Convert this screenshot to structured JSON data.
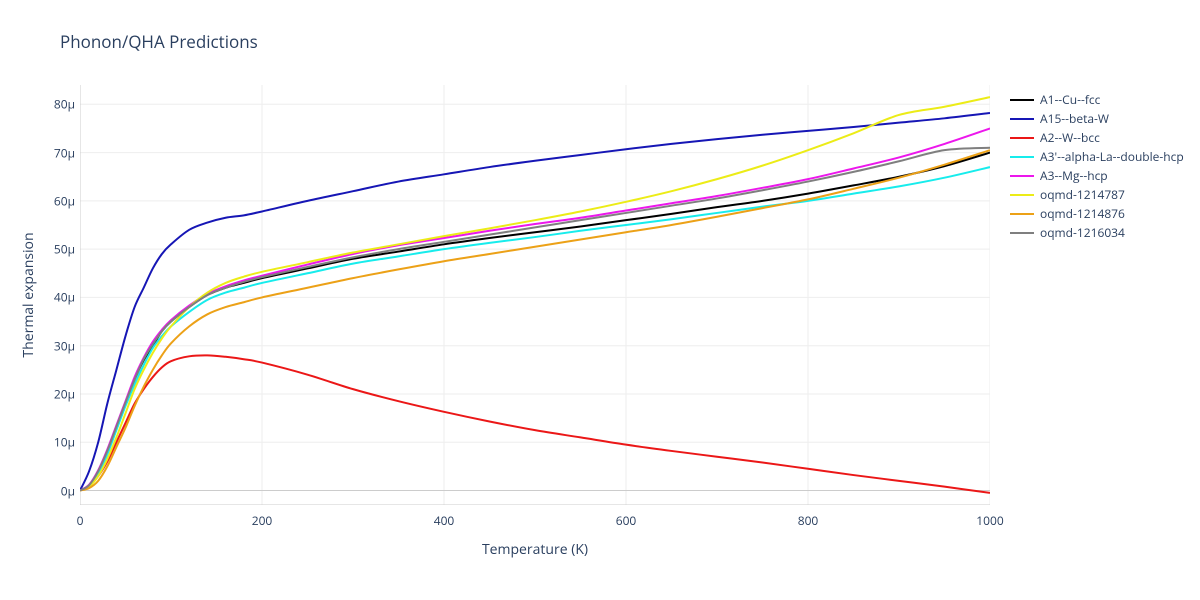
{
  "chart": {
    "type": "line",
    "title": "Phonon/QHA Predictions",
    "xlabel": "Temperature (K)",
    "ylabel": "Thermal expansion",
    "title_fontsize": 17,
    "label_fontsize": 14,
    "tick_fontsize": 12,
    "legend_fontsize": 12,
    "background_color": "#ffffff",
    "plot_bg": "#ffffff",
    "grid_color": "#eeeeee",
    "axis_line_color": "#444444",
    "xlim": [
      0,
      1000
    ],
    "ylim": [
      -3,
      84
    ],
    "xticks": [
      0,
      200,
      400,
      600,
      800,
      1000
    ],
    "yticks": [
      0,
      10,
      20,
      30,
      40,
      50,
      60,
      70,
      80
    ],
    "ytick_suffix": "μ",
    "line_width": 2,
    "x_samples": [
      0,
      10,
      20,
      30,
      40,
      50,
      60,
      70,
      80,
      90,
      100,
      120,
      140,
      160,
      180,
      200,
      250,
      300,
      350,
      400,
      450,
      500,
      550,
      600,
      650,
      700,
      750,
      800,
      850,
      900,
      950,
      1000
    ],
    "series": [
      {
        "name": "A1--Cu--fcc",
        "color": "#000000",
        "y": [
          0,
          1,
          4,
          8,
          13,
          18,
          23,
          27,
          30,
          33,
          35,
          38,
          40.5,
          42,
          43,
          44,
          46,
          48,
          49.5,
          51,
          52.3,
          53.5,
          54.7,
          56,
          57.3,
          58.7,
          60,
          61.5,
          63.2,
          65,
          67.2,
          70
        ]
      },
      {
        "name": "A15--beta-W",
        "color": "#1616b5",
        "y": [
          0,
          4,
          10,
          18,
          25,
          32,
          38,
          42,
          46,
          49,
          51,
          54,
          55.5,
          56.5,
          57,
          57.8,
          60,
          62,
          64,
          65.5,
          67,
          68.3,
          69.5,
          70.7,
          71.8,
          72.8,
          73.7,
          74.5,
          75.3,
          76.2,
          77.1,
          78.2
        ]
      },
      {
        "name": "A2--W--bcc",
        "color": "#eb1717",
        "y": [
          0,
          1,
          3,
          6,
          10,
          14,
          18,
          21,
          23.5,
          25.5,
          26.8,
          27.8,
          28,
          27.7,
          27.2,
          26.5,
          24,
          21,
          18.5,
          16.3,
          14.3,
          12.5,
          11,
          9.5,
          8.2,
          7,
          5.8,
          4.5,
          3.2,
          2,
          0.8,
          -0.5
        ]
      },
      {
        "name": "A3'--alpha-La--double-hcp",
        "color": "#17ecec",
        "y": [
          0,
          1,
          3.5,
          7.5,
          12.5,
          17.5,
          22,
          26,
          29.5,
          32,
          34,
          37,
          39.5,
          41,
          42,
          43,
          45,
          47,
          48.5,
          50,
          51.3,
          52.5,
          53.8,
          55,
          56.2,
          57.5,
          58.8,
          60,
          61.5,
          63,
          64.8,
          67
        ]
      },
      {
        "name": "A3--Mg--hcp",
        "color": "#ec17ec",
        "y": [
          0,
          1.2,
          4.2,
          8.5,
          13.5,
          18.5,
          23.5,
          27.5,
          30.8,
          33.3,
          35.3,
          38.3,
          40.7,
          42.3,
          43.5,
          44.5,
          46.8,
          49,
          50.8,
          52.3,
          53.8,
          55.2,
          56.5,
          58,
          59.5,
          61,
          62.7,
          64.5,
          66.7,
          69,
          71.8,
          75
        ]
      },
      {
        "name": "oqmd-1214787",
        "color": "#ecec17",
        "y": [
          0,
          0.8,
          3,
          6.5,
          11,
          16,
          21,
          25,
          28.5,
          31.5,
          34,
          38,
          41,
          43,
          44.3,
          45.3,
          47.3,
          49.3,
          51,
          52.7,
          54.3,
          56,
          57.8,
          59.8,
          62,
          64.5,
          67.3,
          70.5,
          74,
          77.8,
          79.5,
          81.5
        ]
      },
      {
        "name": "oqmd-1214876",
        "color": "#eca117",
        "y": [
          0,
          0.5,
          2,
          5,
          9,
          13,
          17.5,
          21.5,
          25,
          28,
          30.5,
          34,
          36.5,
          38,
          39,
          40,
          42,
          44,
          45.8,
          47.5,
          49,
          50.5,
          52,
          53.5,
          55,
          56.7,
          58.5,
          60.3,
          62.5,
          64.8,
          67.5,
          70.5
        ]
      },
      {
        "name": "oqmd-1216034",
        "color": "#7f7f7f",
        "y": [
          0,
          1.1,
          4,
          8.2,
          13.2,
          18.2,
          23,
          27.2,
          30.3,
          33,
          35,
          38,
          40.5,
          42,
          43.2,
          44.2,
          46.3,
          48.3,
          50,
          51.5,
          53,
          54.5,
          56,
          57.5,
          59,
          60.5,
          62.2,
          64,
          66,
          68.2,
          70.5,
          71
        ]
      }
    ]
  }
}
